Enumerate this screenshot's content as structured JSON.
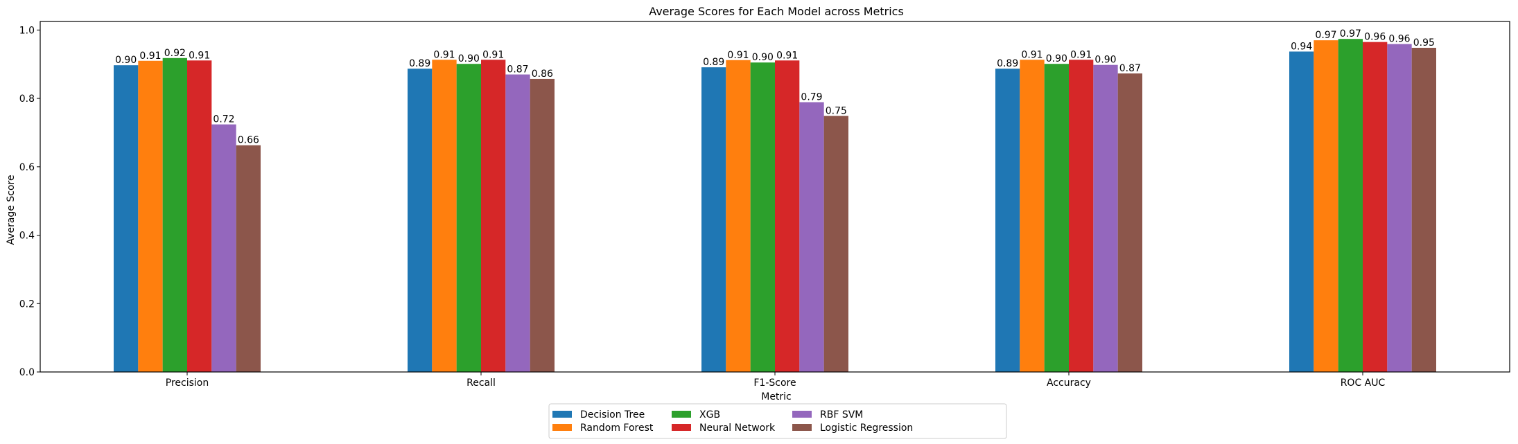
{
  "chart_data": {
    "type": "bar",
    "title": "Average Scores for Each Model across Metrics",
    "xlabel": "Metric",
    "ylabel": "Average Score",
    "categories": [
      "Precision",
      "Recall",
      "F1-Score",
      "Accuracy",
      "ROC AUC"
    ],
    "ylim": [
      0,
      1.025
    ],
    "yticks": [
      "0.0",
      "0.2",
      "0.4",
      "0.6",
      "0.8",
      "1.0"
    ],
    "grid": false,
    "legend_position": "bottom-center",
    "series": [
      {
        "name": "Decision Tree",
        "color": "#1f77b4",
        "values": [
          0.897,
          0.887,
          0.891,
          0.887,
          0.937
        ],
        "labels": [
          "0.90",
          "0.89",
          "0.89",
          "0.89",
          "0.94"
        ]
      },
      {
        "name": "Random Forest",
        "color": "#ff7f0e",
        "values": [
          0.91,
          0.913,
          0.912,
          0.913,
          0.97
        ],
        "labels": [
          "0.91",
          "0.91",
          "0.91",
          "0.91",
          "0.97"
        ]
      },
      {
        "name": "XGB",
        "color": "#2ca02c",
        "values": [
          0.918,
          0.901,
          0.905,
          0.901,
          0.974
        ],
        "labels": [
          "0.92",
          "0.90",
          "0.90",
          "0.90",
          "0.97"
        ]
      },
      {
        "name": "Neural Network",
        "color": "#d62728",
        "values": [
          0.911,
          0.913,
          0.911,
          0.913,
          0.965
        ],
        "labels": [
          "0.91",
          "0.91",
          "0.91",
          "0.91",
          "0.96"
        ]
      },
      {
        "name": "RBF SVM",
        "color": "#9467bd",
        "values": [
          0.724,
          0.87,
          0.789,
          0.898,
          0.959
        ],
        "labels": [
          "0.72",
          "0.87",
          "0.79",
          "0.90",
          "0.96"
        ]
      },
      {
        "name": "Logistic Regression",
        "color": "#8c564b",
        "values": [
          0.663,
          0.857,
          0.749,
          0.873,
          0.948
        ],
        "labels": [
          "0.66",
          "0.86",
          "0.75",
          "0.87",
          "0.95"
        ]
      }
    ]
  }
}
